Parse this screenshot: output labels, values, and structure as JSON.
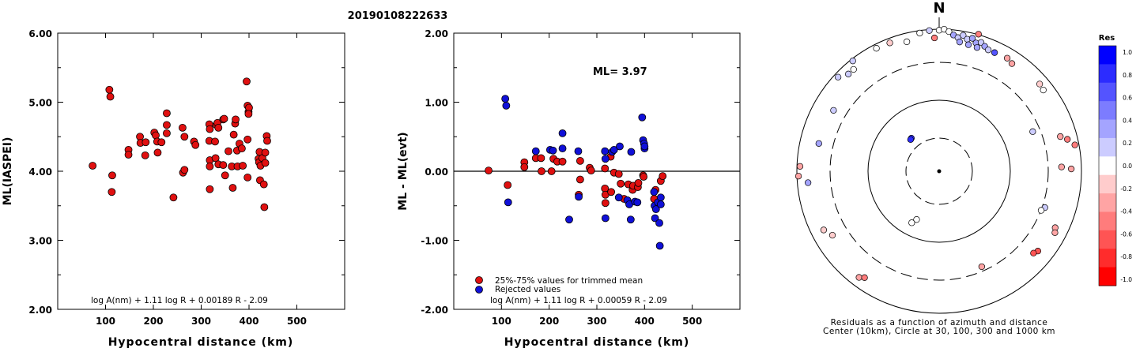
{
  "title": "20190108222633",
  "chart_data": [
    {
      "type": "scatter",
      "id": "ml-vs-distance",
      "xlabel": "Hypocentral distance (km)",
      "ylabel": "ML(IASPEI)",
      "xlim": [
        0,
        600
      ],
      "ylim": [
        2.0,
        6.0
      ],
      "xticks": [
        "100",
        "200",
        "300",
        "400",
        "500"
      ],
      "yticks": [
        "2.00",
        "3.00",
        "4.00",
        "5.00",
        "6.00"
      ],
      "formula": "log A(nm) + 1.11 log R + 0.00189 R - 2.09",
      "series": [
        {
          "color": "#e01010",
          "points": [
            [
              73,
              4.08
            ],
            [
              108,
              5.18
            ],
            [
              110,
              5.08
            ],
            [
              114,
              3.94
            ],
            [
              113,
              3.7
            ],
            [
              148,
              4.31
            ],
            [
              148,
              4.24
            ],
            [
              172,
              4.5
            ],
            [
              173,
              4.41
            ],
            [
              184,
              4.42
            ],
            [
              183,
              4.23
            ],
            [
              202,
              4.56
            ],
            [
              205,
              4.52
            ],
            [
              208,
              4.43
            ],
            [
              209,
              4.27
            ],
            [
              217,
              4.42
            ],
            [
              228,
              4.84
            ],
            [
              228,
              4.67
            ],
            [
              228,
              4.55
            ],
            [
              242,
              3.62
            ],
            [
              261,
              4.63
            ],
            [
              262,
              3.98
            ],
            [
              265,
              4.5
            ],
            [
              265,
              4.02
            ],
            [
              285,
              4.43
            ],
            [
              288,
              4.38
            ],
            [
              317,
              4.68
            ],
            [
              318,
              4.61
            ],
            [
              317,
              4.44
            ],
            [
              318,
              4.16
            ],
            [
              318,
              4.07
            ],
            [
              318,
              3.74
            ],
            [
              329,
              4.43
            ],
            [
              330,
              4.19
            ],
            [
              332,
              4.67
            ],
            [
              334,
              4.7
            ],
            [
              336,
              4.63
            ],
            [
              336,
              4.1
            ],
            [
              346,
              4.75
            ],
            [
              348,
              4.76
            ],
            [
              346,
              4.09
            ],
            [
              350,
              3.94
            ],
            [
              357,
              4.29
            ],
            [
              364,
              4.07
            ],
            [
              366,
              3.76
            ],
            [
              368,
              4.53
            ],
            [
              371,
              4.69
            ],
            [
              372,
              4.75
            ],
            [
              375,
              4.3
            ],
            [
              376,
              4.07
            ],
            [
              380,
              4.4
            ],
            [
              385,
              4.33
            ],
            [
              387,
              4.08
            ],
            [
              395,
              5.3
            ],
            [
              397,
              4.95
            ],
            [
              399,
              4.86
            ],
            [
              400,
              4.92
            ],
            [
              397,
              4.46
            ],
            [
              399,
              4.83
            ],
            [
              397,
              3.91
            ],
            [
              420,
              4.18
            ],
            [
              421,
              4.13
            ],
            [
              422,
              4.28
            ],
            [
              423,
              3.87
            ],
            [
              424,
              4.08
            ],
            [
              428,
              4.19
            ],
            [
              431,
              3.81
            ],
            [
              432,
              3.48
            ],
            [
              434,
              4.12
            ],
            [
              434,
              4.27
            ],
            [
              437,
              4.51
            ],
            [
              438,
              4.44
            ]
          ]
        }
      ]
    },
    {
      "type": "scatter",
      "id": "residual-vs-distance",
      "xlabel": "Hypocentral distance (km)",
      "ylabel": "ML - ML(evt)",
      "xlim": [
        0,
        600
      ],
      "ylim": [
        -2.0,
        2.0
      ],
      "xticks": [
        "100",
        "200",
        "300",
        "400",
        "500"
      ],
      "yticks": [
        "-2.00",
        "-1.00",
        "0.00",
        "1.00",
        "2.00"
      ],
      "annotation": "ML= 3.97",
      "formula": "log A(nm) + 1.11 log R + 0.00059 R - 2.09",
      "legend": [
        {
          "label": "25%-75% values for trimmed mean",
          "color": "#e01010"
        },
        {
          "label": "Rejected values",
          "color": "#1010d8"
        }
      ],
      "series": [
        {
          "name": "25%-75% values for trimmed mean",
          "color": "#e01010",
          "points": [
            [
              73,
              0.01
            ],
            [
              113,
              -0.2
            ],
            [
              148,
              0.13
            ],
            [
              148,
              0.06
            ],
            [
              172,
              0.19
            ],
            [
              183,
              0.19
            ],
            [
              184,
              0.0
            ],
            [
              205,
              0.0
            ],
            [
              209,
              0.18
            ],
            [
              217,
              0.14
            ],
            [
              228,
              0.14
            ],
            [
              262,
              -0.34
            ],
            [
              265,
              0.15
            ],
            [
              265,
              -0.12
            ],
            [
              285,
              0.05
            ],
            [
              288,
              0.01
            ],
            [
              317,
              0.04
            ],
            [
              317,
              -0.25
            ],
            [
              318,
              -0.34
            ],
            [
              318,
              -0.46
            ],
            [
              329,
              0.21
            ],
            [
              330,
              -0.3
            ],
            [
              336,
              -0.02
            ],
            [
              346,
              -0.04
            ],
            [
              350,
              -0.18
            ],
            [
              357,
              -0.4
            ],
            [
              366,
              -0.19
            ],
            [
              375,
              -0.27
            ],
            [
              376,
              -0.21
            ],
            [
              386,
              -0.23
            ],
            [
              387,
              -0.17
            ],
            [
              397,
              -0.06
            ],
            [
              398,
              -0.08
            ],
            [
              420,
              -0.4
            ],
            [
              423,
              -0.27
            ],
            [
              434,
              -0.14
            ],
            [
              438,
              -0.07
            ]
          ]
        },
        {
          "name": "Rejected values",
          "color": "#1010d8",
          "points": [
            [
              108,
              1.05
            ],
            [
              110,
              0.95
            ],
            [
              114,
              -0.45
            ],
            [
              172,
              0.29
            ],
            [
              202,
              0.31
            ],
            [
              208,
              0.3
            ],
            [
              228,
              0.55
            ],
            [
              228,
              0.33
            ],
            [
              242,
              -0.7
            ],
            [
              261,
              0.29
            ],
            [
              262,
              -0.37
            ],
            [
              317,
              0.29
            ],
            [
              318,
              0.18
            ],
            [
              318,
              -0.68
            ],
            [
              332,
              0.28
            ],
            [
              336,
              0.31
            ],
            [
              346,
              -0.38
            ],
            [
              348,
              0.36
            ],
            [
              364,
              -0.42
            ],
            [
              368,
              -0.48
            ],
            [
              371,
              -0.7
            ],
            [
              372,
              0.28
            ],
            [
              380,
              -0.44
            ],
            [
              385,
              -0.45
            ],
            [
              395,
              0.78
            ],
            [
              397,
              0.45
            ],
            [
              399,
              0.4
            ],
            [
              400,
              0.33
            ],
            [
              400,
              0.36
            ],
            [
              420,
              -0.3
            ],
            [
              421,
              -0.5
            ],
            [
              422,
              -0.68
            ],
            [
              424,
              -0.55
            ],
            [
              428,
              -0.45
            ],
            [
              431,
              -0.75
            ],
            [
              432,
              -1.08
            ],
            [
              434,
              -0.38
            ],
            [
              434,
              -0.48
            ]
          ]
        }
      ]
    },
    {
      "type": "scatter",
      "id": "residual-azimuth-map",
      "north_label": "N",
      "caption_line1": "Residuals as a function of azimuth and distance",
      "caption_line2": "Center (10km), Circle at 30, 100, 300 and 1000 km",
      "colorbar": {
        "title": "Res",
        "labels": [
          "1.0",
          "0.8",
          "0.6",
          "0.4",
          "0.2",
          "0.0",
          "-0.2",
          "-0.4",
          "-0.6",
          "-0.8",
          "-1.0"
        ],
        "colors": [
          "#0000ff",
          "#2c2cff",
          "#5454ff",
          "#7c7cff",
          "#a4a4ff",
          "#ccccff",
          "#ffffff",
          "#ffcccc",
          "#ffa4a4",
          "#ff7c7c",
          "#ff5454",
          "#ff2c2c",
          "#ff0000"
        ]
      },
      "points": [
        {
          "az": -4,
          "dist": 278,
          "res": 0.1
        },
        {
          "az": -8,
          "dist": 275,
          "res": -0.05
        },
        {
          "az": -14,
          "dist": 263,
          "res": 0.0
        },
        {
          "az": -21,
          "dist": 271,
          "res": -0.15
        },
        {
          "az": -27,
          "dist": 272,
          "res": 0.0
        },
        {
          "az": -38,
          "dist": 276,
          "res": 0.15
        },
        {
          "az": -40,
          "dist": 262,
          "res": 0.05
        },
        {
          "az": -43,
          "dist": 262,
          "res": 0.2
        },
        {
          "az": -47,
          "dist": 272,
          "res": 0.15
        },
        {
          "az": -60,
          "dist": 240,
          "res": 0.2
        },
        {
          "az": -77,
          "dist": 243,
          "res": 0.3
        },
        {
          "az": -88,
          "dist": 274,
          "res": -0.25
        },
        {
          "az": -92,
          "dist": 277,
          "res": -0.3
        },
        {
          "az": -95,
          "dist": 259,
          "res": 0.3
        },
        {
          "az": -117,
          "dist": 255,
          "res": -0.2
        },
        {
          "az": -121,
          "dist": 245,
          "res": -0.15
        },
        {
          "az": -143,
          "dist": 262,
          "res": -0.35
        },
        {
          "az": -145,
          "dist": 256,
          "res": -0.45
        },
        {
          "az": -155,
          "dist": 105,
          "res": 0.0
        },
        {
          "az": -152,
          "dist": 115,
          "res": 0.0
        },
        {
          "az": -40,
          "dist": 85,
          "res": 0.9
        },
        {
          "az": -42,
          "dist": 84,
          "res": 0.85
        },
        {
          "az": 0,
          "dist": 278,
          "res": 0.0
        },
        {
          "az": 2,
          "dist": 280,
          "res": 0.0
        },
        {
          "az": 4,
          "dist": 276,
          "res": 0.0
        },
        {
          "az": 6,
          "dist": 270,
          "res": 0.3
        },
        {
          "az": 8,
          "dist": 266,
          "res": 0.25
        },
        {
          "az": 10,
          "dist": 272,
          "res": 0.2
        },
        {
          "az": 12,
          "dist": 266,
          "res": 0.25
        },
        {
          "az": 14,
          "dist": 270,
          "res": 0.3
        },
        {
          "az": 16,
          "dist": 263,
          "res": 0.28
        },
        {
          "az": 18,
          "dist": 267,
          "res": 0.25
        },
        {
          "az": 20,
          "dist": 262,
          "res": 0.3
        },
        {
          "az": 22,
          "dist": 258,
          "res": 0.25
        },
        {
          "az": 9,
          "dist": 258,
          "res": 0.35
        },
        {
          "az": 13,
          "dist": 256,
          "res": 0.3
        },
        {
          "az": 17,
          "dist": 255,
          "res": 0.3
        },
        {
          "az": 25,
          "dist": 258,
          "res": 0.6
        },
        {
          "az": 31,
          "dist": 260,
          "res": -0.3
        },
        {
          "az": 34,
          "dist": 256,
          "res": -0.25
        },
        {
          "az": 49,
          "dist": 262,
          "res": -0.1
        },
        {
          "az": 52,
          "dist": 260,
          "res": 0.0
        },
        {
          "az": 67,
          "dist": 200,
          "res": 0.25
        },
        {
          "az": 74,
          "dist": 248,
          "res": -0.4
        },
        {
          "az": 76,
          "dist": 260,
          "res": -0.45
        },
        {
          "az": 79,
          "dist": 272,
          "res": -0.5
        },
        {
          "az": 88,
          "dist": 241,
          "res": -0.35
        },
        {
          "az": 89,
          "dist": 260,
          "res": -0.3
        },
        {
          "az": 109,
          "dist": 220,
          "res": 0.2
        },
        {
          "az": 111,
          "dist": 215,
          "res": 0.0
        },
        {
          "az": 116,
          "dist": 254,
          "res": -0.35
        },
        {
          "az": 118,
          "dist": 258,
          "res": -0.3
        },
        {
          "az": 129,
          "dist": 250,
          "res": -0.7
        },
        {
          "az": 131,
          "dist": 246,
          "res": -0.6
        },
        {
          "az": 156,
          "dist": 206,
          "res": -0.25
        },
        {
          "az": 16,
          "dist": 281,
          "res": -0.55
        },
        {
          "az": -2,
          "dist": 263,
          "res": -0.45
        }
      ]
    }
  ]
}
